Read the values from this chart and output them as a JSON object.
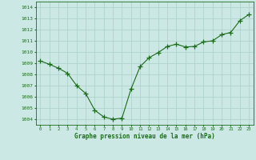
{
  "x": [
    0,
    1,
    2,
    3,
    4,
    5,
    6,
    7,
    8,
    9,
    10,
    11,
    12,
    13,
    14,
    15,
    16,
    17,
    18,
    19,
    20,
    21,
    22,
    23
  ],
  "y": [
    1009.2,
    1008.9,
    1008.55,
    1008.1,
    1007.0,
    1006.3,
    1004.8,
    1004.2,
    1004.0,
    1004.1,
    1006.7,
    1008.7,
    1009.5,
    1009.95,
    1010.5,
    1010.7,
    1010.45,
    1010.5,
    1010.9,
    1011.0,
    1011.55,
    1011.75,
    1012.8,
    1013.35
  ],
  "line_color": "#1a6b1a",
  "marker": "+",
  "marker_size": 4,
  "marker_color": "#1a6b1a",
  "bg_color": "#cce8e4",
  "grid_color": "#aacfca",
  "xlabel": "Graphe pression niveau de la mer (hPa)",
  "xlabel_color": "#1a6b1a",
  "tick_color": "#1a6b1a",
  "ylim": [
    1003.5,
    1014.5
  ],
  "yticks": [
    1004,
    1005,
    1006,
    1007,
    1008,
    1009,
    1010,
    1011,
    1012,
    1013,
    1014
  ],
  "xtick_labels": [
    "0",
    "1",
    "2",
    "3",
    "4",
    "5",
    "6",
    "7",
    "8",
    "9",
    "10",
    "11",
    "12",
    "13",
    "14",
    "15",
    "16",
    "17",
    "18",
    "19",
    "20",
    "21",
    "22",
    "23"
  ],
  "spine_color": "#1a6b1a"
}
